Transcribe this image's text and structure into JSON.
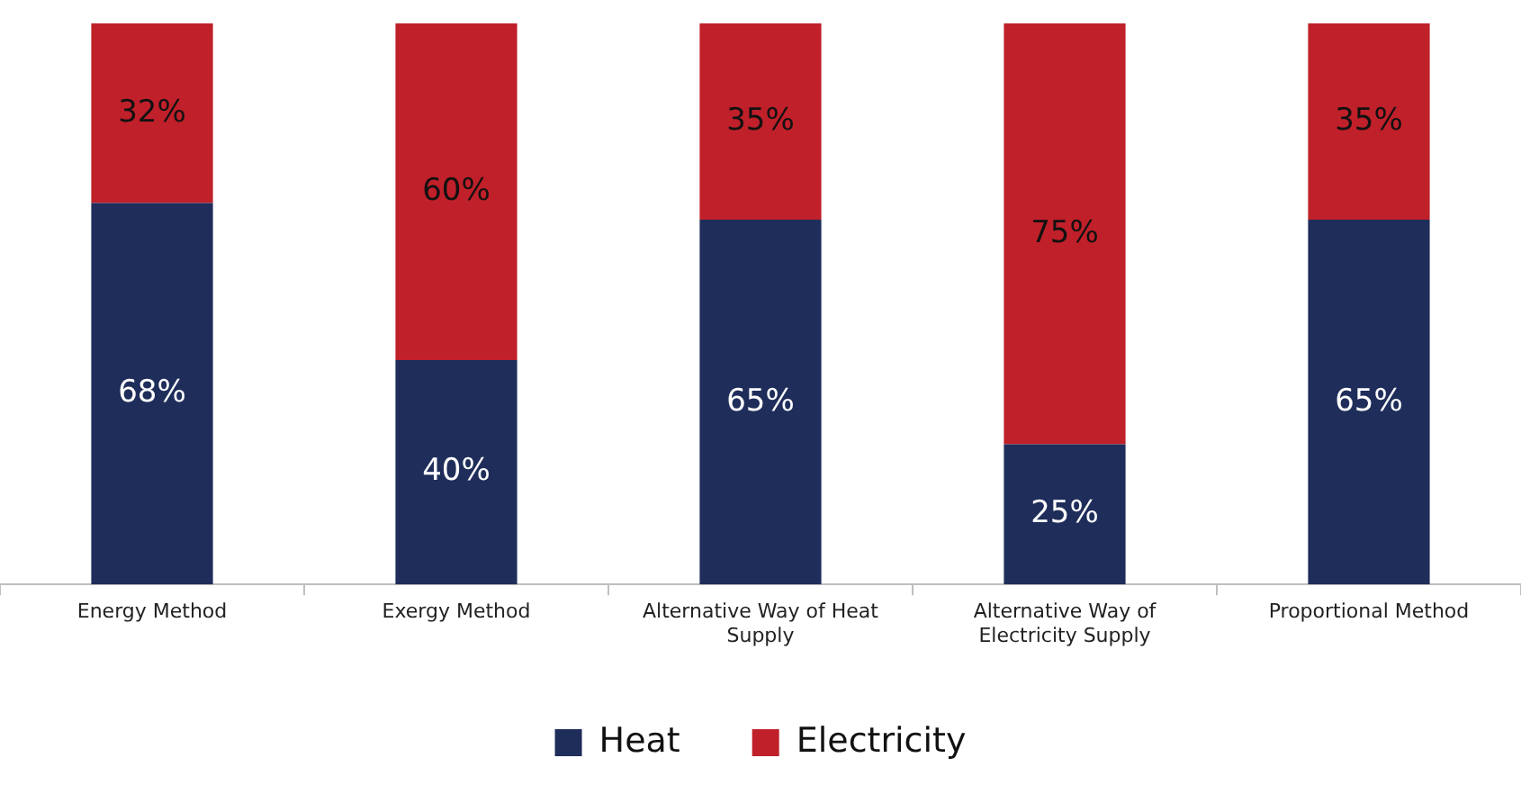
{
  "chart_data": {
    "type": "bar",
    "stacked": true,
    "categories": [
      "Energy Method",
      "Exergy Method",
      "Alternative Way of Heat Supply",
      "Alternative Way of Electricity Supply",
      "Proportional Method"
    ],
    "series": [
      {
        "name": "Heat",
        "color": "#1f2d5a",
        "values": [
          68,
          40,
          65,
          25,
          65
        ],
        "value_labels": [
          "68%",
          "40%",
          "65%",
          "25%",
          "65%"
        ]
      },
      {
        "name": "Electricity",
        "color": "#c0202a",
        "values": [
          32,
          60,
          35,
          75,
          35
        ],
        "value_labels": [
          "32%",
          "60%",
          "35%",
          "75%",
          "35%"
        ]
      }
    ],
    "ylim": [
      0,
      100
    ],
    "tick_labels": "x",
    "grid": false,
    "legend": "bottom"
  }
}
